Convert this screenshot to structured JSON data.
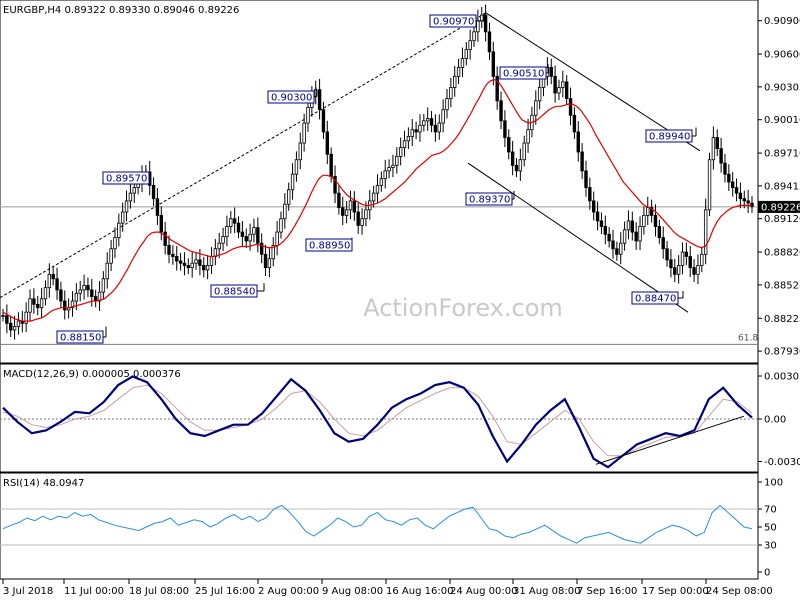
{
  "header": {
    "main_title": "EURGBP,H4  0.89322 0.89330 0.89046 0.89226",
    "macd_title": "MACD(12,26,9) 0.000005 0.000376",
    "rsi_title": "RSI(14) 48.0947"
  },
  "watermark": "ActionForex.com",
  "colors": {
    "candle": "#000000",
    "ma": "#e00000",
    "macd": "#00007a",
    "signal": "#c8a0a0",
    "rsi": "#2b8fdc",
    "grid": "#e6e6e6",
    "axis": "#000000"
  },
  "chart_data": [
    {
      "panel": "price",
      "type": "candlestick",
      "symbol": "EURGBP",
      "timeframe": "H4",
      "ylim": [
        0.8785,
        0.9105
      ],
      "y_ticks": [
        "0.90900",
        "0.90600",
        "0.90305",
        "0.90010",
        "0.89710",
        "0.89415",
        "0.89120",
        "0.88820",
        "0.88525",
        "0.88225",
        "0.87930"
      ],
      "current_price": "0.89226",
      "x_ticks": [
        "3 Jul 2018",
        "11 Jul 00:00",
        "18 Jul 08:00",
        "25 Jul 16:00",
        "2 Aug 00:00",
        "9 Aug 08:00",
        "16 Aug 16:00",
        "24 Aug 00:00",
        "31 Aug 08:00",
        "7 Sep 16:00",
        "17 Sep 00:00",
        "24 Sep 08:00"
      ],
      "annotations": [
        {
          "label": "0.89570",
          "value": 0.8957
        },
        {
          "label": "0.90300",
          "value": 0.903
        },
        {
          "label": "0.90970",
          "value": 0.9097
        },
        {
          "label": "0.90510",
          "value": 0.9051
        },
        {
          "label": "0.89940",
          "value": 0.8994
        },
        {
          "label": "0.89370",
          "value": 0.8937
        },
        {
          "label": "0.88950",
          "value": 0.8895
        },
        {
          "label": "0.88540",
          "value": 0.8854
        },
        {
          "label": "0.88150",
          "value": 0.8815
        },
        {
          "label": "0.88470",
          "value": 0.8847
        }
      ],
      "fib_level": {
        "label": "61.8",
        "value": 0.8799
      },
      "close_series": [
        0.8825,
        0.8818,
        0.8812,
        0.8815,
        0.882,
        0.8818,
        0.8828,
        0.884,
        0.8835,
        0.8832,
        0.884,
        0.885,
        0.8862,
        0.8858,
        0.8848,
        0.8838,
        0.883,
        0.8832,
        0.8838,
        0.8845,
        0.8848,
        0.8852,
        0.8848,
        0.8842,
        0.8838,
        0.8846,
        0.8858,
        0.8872,
        0.8885,
        0.8895,
        0.8908,
        0.8918,
        0.8928,
        0.8935,
        0.894,
        0.8945,
        0.895,
        0.8954,
        0.8942,
        0.893,
        0.8915,
        0.89,
        0.8888,
        0.888,
        0.8878,
        0.8874,
        0.8872,
        0.887,
        0.8868,
        0.8872,
        0.8875,
        0.887,
        0.8866,
        0.887,
        0.8878,
        0.8885,
        0.889,
        0.8896,
        0.8905,
        0.8912,
        0.8908,
        0.89,
        0.8896,
        0.8892,
        0.8898,
        0.8904,
        0.889,
        0.888,
        0.8868,
        0.8876,
        0.8888,
        0.89,
        0.8912,
        0.8925,
        0.8938,
        0.8952,
        0.8965,
        0.898,
        0.8998,
        0.9012,
        0.9022,
        0.9028,
        0.901,
        0.899,
        0.897,
        0.895,
        0.8935,
        0.8922,
        0.8915,
        0.892,
        0.8928,
        0.8918,
        0.8906,
        0.8912,
        0.892,
        0.8928,
        0.8935,
        0.8942,
        0.8948,
        0.8955,
        0.8958,
        0.896,
        0.8968,
        0.8976,
        0.8982,
        0.8986,
        0.8992,
        0.899,
        0.8996,
        0.9,
        0.9002,
        0.8996,
        0.899,
        0.8998,
        0.901,
        0.902,
        0.903,
        0.904,
        0.9048,
        0.9056,
        0.9064,
        0.9072,
        0.908,
        0.909,
        0.9095,
        0.908,
        0.9062,
        0.904,
        0.9018,
        0.9,
        0.8985,
        0.8972,
        0.896,
        0.8955,
        0.8965,
        0.898,
        0.8992,
        0.9005,
        0.9018,
        0.903,
        0.904,
        0.9048,
        0.904,
        0.9025,
        0.903,
        0.9035,
        0.902,
        0.9005,
        0.899,
        0.8972,
        0.8955,
        0.894,
        0.8928,
        0.8918,
        0.891,
        0.8905,
        0.8898,
        0.8892,
        0.8885,
        0.888,
        0.889,
        0.8902,
        0.891,
        0.89,
        0.8892,
        0.8905,
        0.8915,
        0.8922,
        0.8915,
        0.8905,
        0.8895,
        0.8885,
        0.8875,
        0.8868,
        0.8862,
        0.887,
        0.8882,
        0.8878,
        0.8868,
        0.8862,
        0.887,
        0.888,
        0.892,
        0.8965,
        0.8985,
        0.8975,
        0.8962,
        0.8952,
        0.8945,
        0.894,
        0.8935,
        0.893,
        0.8928,
        0.8926,
        0.8923
      ],
      "ma_series": [
        0.8828,
        0.8826,
        0.8824,
        0.8822,
        0.8821,
        0.882,
        0.882,
        0.882,
        0.8821,
        0.8822,
        0.8823,
        0.8825,
        0.8828,
        0.883,
        0.8831,
        0.8832,
        0.8832,
        0.8832,
        0.8833,
        0.8834,
        0.8835,
        0.8836,
        0.8837,
        0.8838,
        0.8838,
        0.8839,
        0.884,
        0.8843,
        0.8846,
        0.885,
        0.8855,
        0.8861,
        0.8867,
        0.8874,
        0.888,
        0.8886,
        0.8891,
        0.8896,
        0.8899,
        0.89,
        0.89,
        0.8898,
        0.8896,
        0.8893,
        0.8891,
        0.8889,
        0.8887,
        0.8885,
        0.8883,
        0.8882,
        0.8881,
        0.888,
        0.8879,
        0.8878,
        0.8878,
        0.8879,
        0.888,
        0.8881,
        0.8883,
        0.8885,
        0.8886,
        0.8887,
        0.8887,
        0.8887,
        0.8888,
        0.8889,
        0.8888,
        0.8887,
        0.8886,
        0.8886,
        0.8887,
        0.8889,
        0.8892,
        0.8896,
        0.8901,
        0.8907,
        0.8913,
        0.892,
        0.8927,
        0.8935,
        0.8942,
        0.8948,
        0.8951,
        0.8951,
        0.895,
        0.8947,
        0.8943,
        0.8938,
        0.8934,
        0.8931,
        0.8929,
        0.8927,
        0.8925,
        0.8924,
        0.8924,
        0.8925,
        0.8926,
        0.8928,
        0.893,
        0.8933,
        0.8936,
        0.8939,
        0.8942,
        0.8945,
        0.8949,
        0.8953,
        0.8957,
        0.896,
        0.8963,
        0.8966,
        0.8969,
        0.897,
        0.8971,
        0.8973,
        0.8976,
        0.898,
        0.8984,
        0.8989,
        0.8995,
        0.9001,
        0.9007,
        0.9014,
        0.902,
        0.9027,
        0.9033,
        0.9036,
        0.9037,
        0.9035,
        0.903,
        0.9024,
        0.9018,
        0.9012,
        0.9006,
        0.9001,
        0.8999,
        0.8998,
        0.8999,
        0.9001,
        0.9004,
        0.9007,
        0.901,
        0.9012,
        0.9013,
        0.9013,
        0.9014,
        0.9015,
        0.9015,
        0.9013,
        0.901,
        0.9005,
        0.9,
        0.8994,
        0.8987,
        0.8981,
        0.8975,
        0.8969,
        0.8963,
        0.8957,
        0.8951,
        0.8945,
        0.8941,
        0.8937,
        0.8933,
        0.8929,
        0.8925,
        0.8923,
        0.8921,
        0.8919,
        0.8916,
        0.8912,
        0.8908,
        0.8904,
        0.89,
        0.8897,
        0.8895,
        0.8893,
        0.8891,
        0.8889,
        0.8887,
        0.8886,
        0.8887,
        0.8893,
        0.8902,
        0.8909,
        0.8914,
        0.8917,
        0.892,
        0.8922,
        0.8923,
        0.8924,
        0.8924,
        0.8924,
        0.8924
      ]
    },
    {
      "panel": "macd",
      "type": "line",
      "series": [
        {
          "name": "MACD",
          "values": [
            0.0008,
            -0.0002,
            -0.001,
            -0.0008,
            -0.0002,
            0.0005,
            0.0004,
            0.0012,
            0.0024,
            0.003,
            0.0026,
            0.0014,
            0.0,
            -0.001,
            -0.0012,
            -0.0008,
            -0.0004,
            -0.0004,
            0.0004,
            0.0016,
            0.0028,
            0.002,
            0.0006,
            -0.001,
            -0.0016,
            -0.0014,
            -0.0004,
            0.0008,
            0.0014,
            0.0018,
            0.0024,
            0.0026,
            0.0022,
            0.001,
            -0.0012,
            -0.003,
            -0.0018,
            -0.0004,
            0.0006,
            0.0014,
            -0.0006,
            -0.0028,
            -0.0034,
            -0.0026,
            -0.0018,
            -0.0014,
            -0.001,
            -0.0012,
            -0.0008,
            0.0014,
            0.0022,
            0.001,
            0.0001
          ]
        },
        {
          "name": "Signal",
          "values": [
            0.0005,
            0.0002,
            -0.0004,
            -0.0006,
            -0.0004,
            0.0,
            0.0002,
            0.0006,
            0.0014,
            0.0022,
            0.0024,
            0.0018,
            0.0008,
            -0.0002,
            -0.0008,
            -0.0008,
            -0.0006,
            -0.0004,
            0.0,
            0.0008,
            0.0018,
            0.002,
            0.0012,
            0.0,
            -0.001,
            -0.0012,
            -0.0008,
            0.0,
            0.0008,
            0.0013,
            0.0018,
            0.0022,
            0.0022,
            0.0016,
            0.0002,
            -0.0016,
            -0.0018,
            -0.001,
            -0.0002,
            0.0006,
            0.0,
            -0.0016,
            -0.0026,
            -0.0026,
            -0.0021,
            -0.0017,
            -0.0013,
            -0.0012,
            -0.001,
            0.0002,
            0.0014,
            0.0012,
            0.0004
          ]
        }
      ],
      "ylim": [
        -0.0036,
        0.0036
      ],
      "y_ticks": [
        "0.003034",
        "0.00",
        "-0.003001"
      ],
      "trendline": true
    },
    {
      "panel": "rsi",
      "type": "line",
      "series": [
        {
          "name": "RSI(14)",
          "values": [
            48,
            52,
            55,
            60,
            57,
            62,
            58,
            62,
            60,
            66,
            62,
            64,
            58,
            55,
            52,
            50,
            48,
            46,
            50,
            54,
            56,
            60,
            52,
            55,
            58,
            56,
            50,
            54,
            60,
            64,
            58,
            62,
            56,
            60,
            70,
            74,
            66,
            56,
            45,
            40,
            46,
            52,
            60,
            56,
            50,
            52,
            62,
            66,
            58,
            56,
            52,
            58,
            60,
            52,
            48,
            55,
            62,
            66,
            70,
            72,
            60,
            48,
            46,
            40,
            38,
            42,
            44,
            48,
            52,
            46,
            40,
            36,
            32,
            38,
            40,
            42,
            44,
            40,
            36,
            34,
            32,
            38,
            44,
            48,
            52,
            50,
            46,
            40,
            44,
            66,
            74,
            66,
            58,
            50,
            48
          ]
        }
      ],
      "ylim": [
        0,
        100
      ],
      "y_ticks": [
        "100",
        "70",
        "50",
        "30",
        "0"
      ]
    }
  ]
}
